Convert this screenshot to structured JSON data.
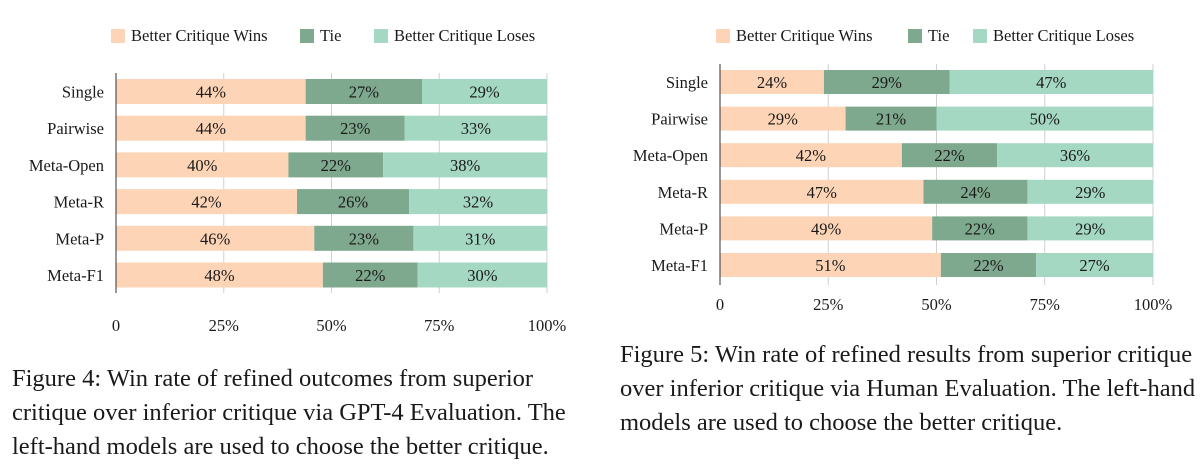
{
  "colors": {
    "wins": "#fdd5b6",
    "tie": "#7fa98e",
    "loses": "#a4d8c3",
    "axis": "#333333",
    "grid": "#d0d0d0"
  },
  "chart_data": [
    {
      "type": "bar",
      "orientation": "horizontal",
      "stacked": true,
      "categories": [
        "Single",
        "Pairwise",
        "Meta-Open",
        "Meta-R",
        "Meta-P",
        "Meta-F1"
      ],
      "series": [
        {
          "name": "Better Critique Wins",
          "values": [
            44,
            44,
            40,
            42,
            46,
            48
          ],
          "labels": [
            "44%",
            "44%",
            "40%",
            "42%",
            "46%",
            "48%"
          ]
        },
        {
          "name": "Tie",
          "values": [
            27,
            23,
            22,
            26,
            23,
            22
          ],
          "labels": [
            "27%",
            "23%",
            "22%",
            "26%",
            "23%",
            "22%"
          ]
        },
        {
          "name": "Better Critique Loses",
          "values": [
            29,
            33,
            38,
            32,
            31,
            30
          ],
          "labels": [
            "29%",
            "33%",
            "38%",
            "32%",
            "31%",
            "30%"
          ]
        }
      ],
      "xlim": [
        0,
        100
      ],
      "xticks": [
        0,
        25,
        50,
        75,
        100
      ],
      "xtick_labels": [
        "0",
        "25%",
        "50%",
        "75%",
        "100%"
      ],
      "grid": true,
      "legend": "top",
      "caption": "Figure 4: Win rate of refined outcomes from superior critique over inferior critique via GPT-4 Evaluation. The left-hand models are used to choose the better critique."
    },
    {
      "type": "bar",
      "orientation": "horizontal",
      "stacked": true,
      "categories": [
        "Single",
        "Pairwise",
        "Meta-Open",
        "Meta-R",
        "Meta-P",
        "Meta-F1"
      ],
      "series": [
        {
          "name": "Better Critique Wins",
          "values": [
            24,
            29,
            42,
            47,
            49,
            51
          ],
          "labels": [
            "24%",
            "29%",
            "42%",
            "47%",
            "49%",
            "51%"
          ]
        },
        {
          "name": "Tie",
          "values": [
            29,
            21,
            22,
            24,
            22,
            22
          ],
          "labels": [
            "29%",
            "21%",
            "22%",
            "24%",
            "22%",
            "22%"
          ]
        },
        {
          "name": "Better Critique Loses",
          "values": [
            47,
            50,
            36,
            29,
            29,
            27
          ],
          "labels": [
            "47%",
            "50%",
            "36%",
            "29%",
            "29%",
            "27%"
          ]
        }
      ],
      "xlim": [
        0,
        100
      ],
      "xticks": [
        0,
        25,
        50,
        75,
        100
      ],
      "xtick_labels": [
        "0",
        "25%",
        "50%",
        "75%",
        "100%"
      ],
      "grid": true,
      "legend": "top",
      "caption": "Figure 5: Win rate of refined results from superior critique over inferior critique via Human Evaluation. The left-hand models are used to choose the better critique."
    }
  ]
}
